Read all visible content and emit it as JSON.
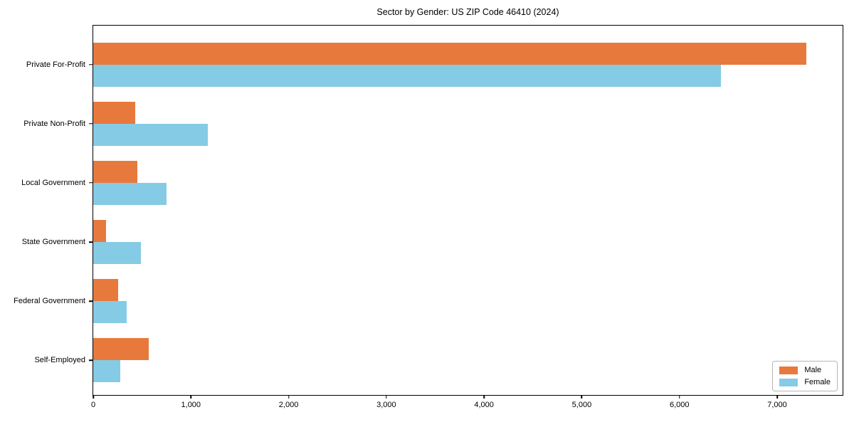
{
  "chart_data": {
    "type": "bar",
    "orientation": "horizontal",
    "title": "Sector by Gender: US ZIP Code 46410 (2024)",
    "categories": [
      "Private For-Profit",
      "Private Non-Profit",
      "Local Government",
      "State Government",
      "Federal Government",
      "Self-Employed"
    ],
    "series": [
      {
        "name": "Male",
        "color": "#e8793d",
        "values": [
          7300,
          430,
          455,
          130,
          255,
          570
        ]
      },
      {
        "name": "Female",
        "color": "#85cbe5",
        "values": [
          6425,
          1175,
          750,
          490,
          345,
          280
        ]
      }
    ],
    "xlabel": "",
    "ylabel": "",
    "xlim": [
      0,
      7670
    ],
    "x_ticks": {
      "values": [
        0,
        1000,
        2000,
        3000,
        4000,
        5000,
        6000,
        7000
      ],
      "labels": [
        "0",
        "1,000",
        "2,000",
        "3,000",
        "4,000",
        "5,000",
        "6,000",
        "7,000"
      ]
    },
    "legend": {
      "position": "lower right",
      "entries": [
        "Male",
        "Female"
      ]
    },
    "grid": false,
    "colors": {
      "spine": "#000000",
      "text": "#000000",
      "background": "#ffffff"
    }
  }
}
